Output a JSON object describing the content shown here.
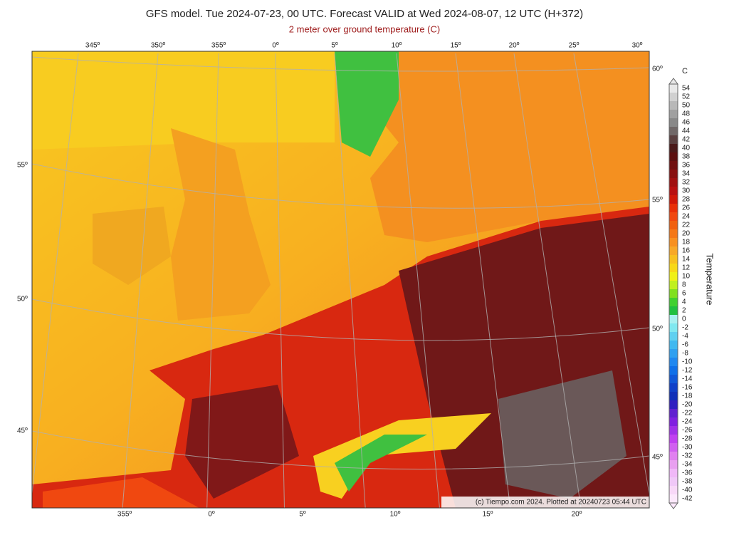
{
  "header": {
    "title": "GFS model. Tue 2024-07-23, 00 UTC. Forecast VALID at Wed 2024-08-07, 12 UTC (H+372)",
    "subtitle": "2 meter over ground temperature (C)"
  },
  "map": {
    "top_labels": [
      "345º",
      "350º",
      "355º",
      "0º",
      "5º",
      "10º",
      "15º",
      "20º",
      "25º",
      "30º"
    ],
    "bottom_labels": [
      "355º",
      "0º",
      "5º",
      "10º",
      "15º",
      "20º"
    ],
    "left_labels": [
      "55º",
      "50º",
      "45º"
    ],
    "right_labels": [
      "60º",
      "55º",
      "50º",
      "45º"
    ],
    "credit": "(c) Tiempo.com 2024. Plotted at 20240723 05:44 UTC"
  },
  "colorbar": {
    "unit": "C",
    "title": "Temperature",
    "levels": [
      54,
      52,
      50,
      48,
      46,
      44,
      42,
      40,
      38,
      36,
      34,
      32,
      30,
      28,
      26,
      24,
      22,
      20,
      18,
      16,
      14,
      12,
      10,
      8,
      6,
      4,
      2,
      0,
      -2,
      -4,
      -6,
      -8,
      -10,
      -12,
      -14,
      -16,
      -18,
      -20,
      -22,
      -24,
      -26,
      -28,
      -30,
      -32,
      -34,
      -36,
      -38,
      -40,
      -42
    ],
    "colors": [
      "#e8e8e8",
      "#d0d0d0",
      "#b8b8b8",
      "#a0a0a0",
      "#888888",
      "#706868",
      "#5a4040",
      "#4a1a1a",
      "#5c1010",
      "#701010",
      "#881010",
      "#a01010",
      "#b81010",
      "#d01808",
      "#e83008",
      "#f04810",
      "#f06010",
      "#f47818",
      "#f89020",
      "#f8a828",
      "#f8c020",
      "#f8d818",
      "#f0f018",
      "#c0f020",
      "#80e020",
      "#40d030",
      "#20c040",
      "#a8f0f0",
      "#80e8f0",
      "#60d0f0",
      "#40b8f0",
      "#30a0f0",
      "#2088f0",
      "#1070e8",
      "#1058d8",
      "#1040c8",
      "#1030b8",
      "#3020c0",
      "#6020d0",
      "#8020e0",
      "#a030e8",
      "#c040f0",
      "#d060f0",
      "#e080f0",
      "#e8a0f0",
      "#f0b8f8",
      "#f0c8f8",
      "#f8d8f8",
      "#fce8fc"
    ]
  }
}
